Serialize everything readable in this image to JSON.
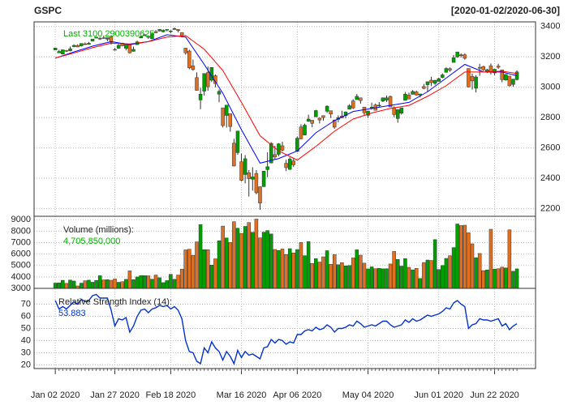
{
  "chart_data": [
    {
      "type": "candlestick",
      "title": "GSPC",
      "subtitle": "[2020-01-02/2020-06-30]",
      "annotation": "Last 3100.2900390625",
      "open": [
        3245,
        3226,
        3218,
        3241,
        3239,
        3267,
        3275,
        3271,
        3285,
        3282,
        3303,
        3323,
        3321,
        3325,
        3316,
        3333,
        3248,
        3256,
        3290,
        3256,
        3282,
        3236,
        3280,
        3324,
        3345,
        3335,
        3319,
        3366,
        3370,
        3365,
        3378,
        3370,
        3380,
        3380,
        3360,
        3257,
        3238,
        3140,
        3063,
        2916,
        2974,
        3096,
        3046,
        3075,
        2954,
        2864,
        2814,
        2825,
        2631,
        2569,
        2509,
        2425,
        2437,
        2394,
        2432,
        2344,
        2345,
        2457,
        2501,
        2556,
        2558,
        2614,
        2499,
        2459,
        2514,
        2578,
        2738,
        2685,
        2776,
        2782,
        2805,
        2796,
        2812,
        2842,
        2845,
        2784,
        2788,
        2810,
        2812,
        2855,
        2909,
        2918,
        2930,
        2869,
        2815,
        2868,
        2883,
        2878,
        2908,
        2915,
        2939,
        2865,
        2794,
        2829,
        2913,
        2948,
        2953,
        2969,
        2948,
        3004,
        3016,
        3046,
        3025,
        3038,
        3064,
        3098,
        3122,
        3163,
        3199,
        3213,
        3213,
        3123,
        3071,
        2993,
        3131,
        3136,
        3101,
        3141,
        3094,
        3139,
        3114,
        3047,
        3073,
        3018,
        3050
      ],
      "high": [
        3259,
        3246,
        3247,
        3245,
        3268,
        3282,
        3282,
        3288,
        3295,
        3298,
        3317,
        3330,
        3330,
        3337,
        3326,
        3338,
        3259,
        3285,
        3293,
        3285,
        3283,
        3268,
        3306,
        3338,
        3348,
        3341,
        3353,
        3376,
        3382,
        3381,
        3381,
        3375,
        3393,
        3382,
        3360,
        3259,
        3247,
        3182,
        3098,
        2996,
        3091,
        3136,
        3130,
        3084,
        2985,
        2863,
        2883,
        2825,
        2660,
        2711,
        2563,
        2553,
        2454,
        2473,
        2454,
        2347,
        2449,
        2571,
        2638,
        2615,
        2632,
        2641,
        2522,
        2539,
        2533,
        2675,
        2756,
        2760,
        2819,
        2783,
        2851,
        2801,
        2815,
        2880,
        2846,
        2786,
        2815,
        2845,
        2840,
        2888,
        2921,
        2955,
        2930,
        2869,
        2844,
        2898,
        2892,
        2902,
        2932,
        2945,
        2945,
        2874,
        2853,
        2865,
        2968,
        2964,
        2981,
        2978,
        2957,
        3021,
        3036,
        3068,
        3049,
        3063,
        3091,
        3131,
        3130,
        3212,
        3233,
        3223,
        3223,
        3123,
        3089,
        3079,
        3154,
        3141,
        3121,
        3156,
        3120,
        3154,
        3114,
        3086,
        3074,
        3054,
        3111
      ],
      "low": [
        3243,
        3225,
        3215,
        3232,
        3236,
        3263,
        3263,
        3268,
        3277,
        3280,
        3301,
        3323,
        3311,
        3318,
        3302,
        3281,
        3241,
        3253,
        3268,
        3242,
        3222,
        3234,
        3280,
        3324,
        3337,
        3318,
        3317,
        3356,
        3367,
        3360,
        3367,
        3355,
        3378,
        3361,
        3328,
        3214,
        3118,
        3108,
        2977,
        2855,
        2945,
        2976,
        3034,
        2999,
        2901,
        2735,
        2734,
        2707,
        2478,
        2555,
        2380,
        2367,
        2280,
        2319,
        2295,
        2192,
        2345,
        2407,
        2500,
        2525,
        2545,
        2577,
        2447,
        2455,
        2474,
        2573,
        2657,
        2685,
        2772,
        2736,
        2805,
        2761,
        2779,
        2830,
        2797,
        2727,
        2768,
        2796,
        2794,
        2853,
        2856,
        2918,
        2891,
        2816,
        2797,
        2852,
        2846,
        2870,
        2902,
        2903,
        2870,
        2803,
        2766,
        2820,
        2913,
        2922,
        2952,
        2944,
        2933,
        2986,
        2970,
        3008,
        3015,
        3037,
        3059,
        3097,
        3101,
        3163,
        3194,
        3196,
        3181,
        2999,
        2984,
        2965,
        3075,
        3107,
        3093,
        3083,
        3079,
        3121,
        3032,
        3043,
        3005,
        3003,
        3044
      ],
      "close": [
        3258,
        3235,
        3246,
        3237,
        3253,
        3275,
        3265,
        3288,
        3283,
        3289,
        3317,
        3330,
        3321,
        3321,
        3326,
        3295,
        3244,
        3276,
        3273,
        3284,
        3226,
        3249,
        3298,
        3334,
        3346,
        3328,
        3352,
        3358,
        3380,
        3374,
        3380,
        3370,
        3386,
        3373,
        3338,
        3226,
        3128,
        3116,
        2979,
        2954,
        3090,
        3003,
        3130,
        3024,
        2972,
        2747,
        2882,
        2741,
        2481,
        2711,
        2386,
        2529,
        2398,
        2409,
        2305,
        2237,
        2447,
        2476,
        2630,
        2541,
        2627,
        2585,
        2470,
        2527,
        2489,
        2664,
        2660,
        2750,
        2790,
        2762,
        2846,
        2784,
        2800,
        2875,
        2823,
        2737,
        2799,
        2798,
        2837,
        2878,
        2863,
        2940,
        2912,
        2831,
        2843,
        2868,
        2848,
        2881,
        2930,
        2930,
        2870,
        2820,
        2852,
        2864,
        2954,
        2922,
        2972,
        2949,
        2955,
        2992,
        3036,
        3030,
        3044,
        3056,
        3081,
        3123,
        3112,
        3194,
        3232,
        3207,
        3190,
        3002,
        3041,
        3067,
        3125,
        3114,
        3115,
        3098,
        3118,
        3131,
        3050,
        3084,
        3009,
        3053,
        3100.2900390625
      ],
      "up_color": "#00a000",
      "down_color": "#e07020",
      "series": [
        {
          "color": "#0000ff",
          "x": [
            0,
            5,
            10,
            15,
            20,
            25,
            30,
            35,
            40,
            45,
            50,
            55,
            60,
            65,
            70,
            75,
            80,
            85,
            90,
            95,
            100,
            105,
            110,
            115,
            120,
            124
          ],
          "values": [
            3191,
            3232,
            3270,
            3300,
            3280,
            3300,
            3345,
            3330,
            3150,
            2960,
            2720,
            2500,
            2530,
            2580,
            2700,
            2780,
            2840,
            2860,
            2880,
            2900,
            2970,
            3060,
            3150,
            3100,
            3100,
            3075
          ]
        },
        {
          "color": "#ff0000",
          "x": [
            0,
            5,
            10,
            15,
            20,
            25,
            30,
            35,
            40,
            45,
            50,
            55,
            60,
            65,
            70,
            75,
            80,
            85,
            90,
            95,
            100,
            105,
            110,
            115,
            120,
            124
          ],
          "values": [
            3192,
            3225,
            3260,
            3290,
            3285,
            3300,
            3330,
            3340,
            3250,
            3110,
            2900,
            2680,
            2580,
            2520,
            2610,
            2710,
            2790,
            2830,
            2860,
            2880,
            2940,
            3010,
            3100,
            3100,
            3105,
            3090
          ]
        }
      ],
      "ylim": [
        2150,
        3430
      ],
      "yticks": [
        2200,
        2400,
        2600,
        2800,
        3000,
        3200,
        3400
      ],
      "grid": true
    },
    {
      "type": "bar",
      "label": "Volume (millions):",
      "last_label": "4,705,850,000",
      "values": [
        3459,
        3484,
        3702,
        3435,
        3726,
        3641,
        3214,
        3456,
        3665,
        3716,
        3535,
        3698,
        4105,
        3739,
        3764,
        3707,
        3823,
        3531,
        3584,
        3787,
        4527,
        3761,
        3996,
        4121,
        4117,
        4095,
        3803,
        4164,
        3929,
        3500,
        3679,
        4230,
        3797,
        4161,
        4675,
        6364,
        6421,
        5892,
        7066,
        8567,
        6383,
        6377,
        5035,
        5581,
        7160,
        8445,
        7405,
        7011,
        8829,
        8258,
        7806,
        8416,
        8755,
        7904,
        9053,
        7411,
        7910,
        8052,
        7755,
        6396,
        6314,
        6440,
        5955,
        6470,
        6096,
        6392,
        7010,
        5856,
        7086,
        5170,
        5595,
        5298,
        5757,
        6292,
        5099,
        5946,
        5069,
        5246,
        4966,
        4995,
        5659,
        6369,
        5902,
        5204,
        4701,
        4878,
        4720,
        4754,
        4709,
        4719,
        5130,
        6227,
        5529,
        4947,
        5599,
        4840,
        4620,
        4753,
        3862,
        5260,
        5477,
        5437,
        7260,
        4649,
        5000,
        5618,
        5857,
        6565,
        8627,
        8488,
        8519,
        7858,
        6896,
        5679,
        6050,
        4547,
        4608,
        8166,
        4681,
        4717,
        4854,
        4787,
        8114,
        4495,
        4705.85
      ],
      "ylim": [
        3000,
        9300
      ],
      "yticks": [
        3000,
        4000,
        5000,
        6000,
        7000,
        8000,
        9000
      ],
      "grid": true
    },
    {
      "type": "line",
      "label": "Relative Strength Index (14):",
      "last_label": "53.883",
      "color": "#0033cc",
      "values": [
        73,
        66,
        68,
        66,
        69,
        72,
        70,
        74,
        72,
        73,
        77,
        78,
        75,
        75,
        75,
        65,
        52,
        58,
        57,
        59,
        47,
        52,
        60,
        65,
        66,
        63,
        66,
        67,
        69,
        68,
        69,
        66,
        68,
        65,
        58,
        40,
        31,
        30,
        23,
        21,
        34,
        30,
        39,
        34,
        31,
        24,
        31,
        27,
        21,
        32,
        26,
        31,
        28,
        29,
        27,
        25,
        34,
        35,
        41,
        38,
        41,
        40,
        37,
        39,
        38,
        45,
        45,
        48,
        49,
        48,
        51,
        49,
        50,
        53,
        51,
        47,
        50,
        50,
        51,
        53,
        52,
        56,
        54,
        51,
        52,
        53,
        52,
        54,
        56,
        56,
        53,
        51,
        52,
        53,
        57,
        55,
        58,
        56,
        57,
        59,
        61,
        60,
        61,
        62,
        64,
        67,
        66,
        71,
        73,
        70,
        68,
        50,
        53,
        54,
        58,
        57,
        57,
        56,
        57,
        58,
        52,
        54,
        49,
        52,
        53.883
      ],
      "ylim": [
        17,
        83
      ],
      "yticks": [
        20,
        30,
        40,
        50,
        60,
        70
      ],
      "grid": true,
      "xlim": [
        -5.7,
        129
      ],
      "xticks": [
        {
          "value": 0,
          "label": "Jan 02 2020"
        },
        {
          "value": 16,
          "label": "Jan 27 2020"
        },
        {
          "value": 31,
          "label": "Feb 18 2020"
        },
        {
          "value": 50,
          "label": "Mar 16 2020"
        },
        {
          "value": 65,
          "label": "Apr 06 2020"
        },
        {
          "value": 84,
          "label": "May 04 2020"
        },
        {
          "value": 103,
          "label": "Jun 01 2020"
        },
        {
          "value": 118,
          "label": "Jun 22 2020"
        }
      ]
    }
  ]
}
